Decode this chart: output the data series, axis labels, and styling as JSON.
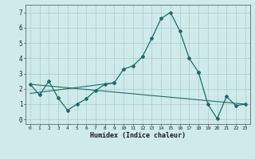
{
  "xlabel": "Humidex (Indice chaleur)",
  "bg_color": "#ceeaea",
  "grid_color": "#b0c8c8",
  "line_color": "#1e6b6b",
  "x_ticks": [
    0,
    1,
    2,
    3,
    4,
    5,
    6,
    7,
    8,
    9,
    10,
    11,
    12,
    13,
    14,
    15,
    16,
    17,
    18,
    19,
    20,
    21,
    22,
    23
  ],
  "ylim": [
    -0.3,
    7.5
  ],
  "xlim": [
    -0.5,
    23.5
  ],
  "series_main": {
    "x": [
      9,
      10,
      11,
      12,
      13,
      14,
      15,
      16,
      17,
      18
    ],
    "y": [
      2.4,
      3.3,
      3.5,
      4.1,
      5.3,
      6.6,
      7.0,
      5.8,
      4.0,
      3.1
    ]
  },
  "series_left": {
    "x": [
      0,
      1,
      2,
      3,
      4,
      5,
      6,
      7,
      8,
      9
    ],
    "y": [
      2.3,
      1.6,
      2.5,
      1.4,
      0.6,
      1.0,
      1.35,
      1.9,
      2.3,
      2.4
    ]
  },
  "series_right": {
    "x": [
      18,
      19,
      20,
      21,
      22,
      23
    ],
    "y": [
      3.1,
      1.0,
      0.05,
      1.5,
      0.9,
      1.0
    ]
  },
  "trend_long": {
    "x": [
      0,
      23
    ],
    "y": [
      2.3,
      1.0
    ]
  },
  "trend_short": {
    "x": [
      0,
      9
    ],
    "y": [
      1.7,
      2.4
    ]
  }
}
